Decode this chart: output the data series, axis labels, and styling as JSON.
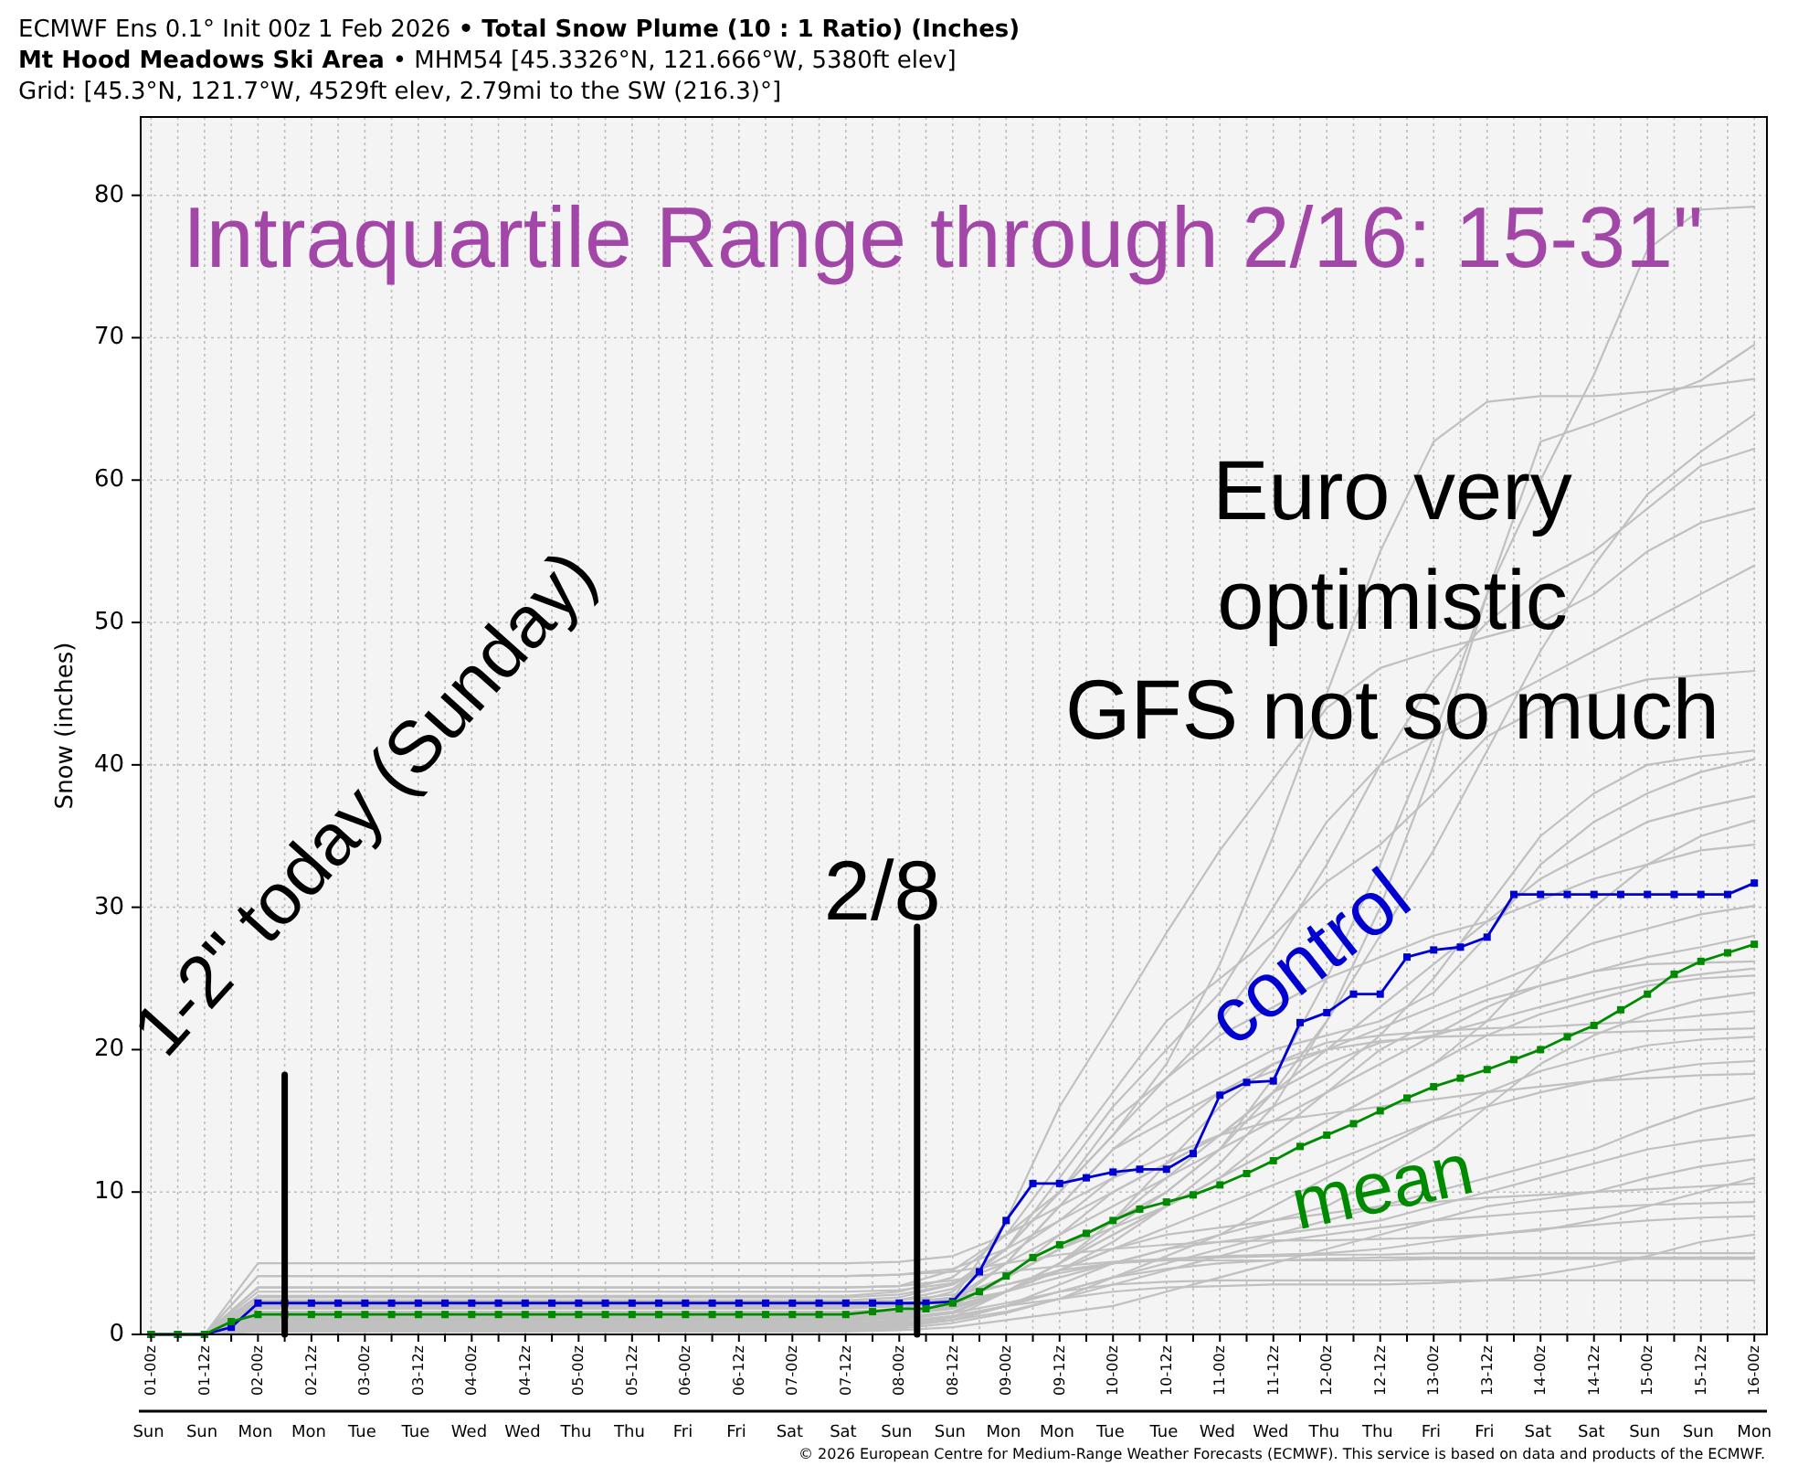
{
  "chart_data": {
    "type": "line",
    "title": "ECMWF Ens 0.1° Init 00z 1 Feb 2026 • Total Snow Plume (10 : 1 Ratio) (Inches)",
    "subtitle": "Mt Hood Meadows Ski Area • MHM54 [45.3326°N, 121.666°W, 5380ft elev]\nGrid: [45.3°N, 121.7°W, 4529ft elev, 2.79mi to the SW (216.3)°]",
    "ylabel": "Snow (inches)",
    "annotations": [
      "Intraquartile Range through 2/16: 15-31\"",
      "Euro very\noptimistic\nGFS not so much",
      "Sun Sun Mon Mon Tue Tue Wed Wed Thu Thu Fri Fri Sat Sat Sun Sun Mon Mon Tue Tue Wed Wed Thu Thu Fri Fri Sat Sat Sun Sun Mon",
      "© 2026 European Centre for Medium-Range Weather Forecasts (ECMWF). This service is based on data and products of the ECMWF."
    ],
    "x": [
      "2026-02-01T00:00",
      "2026-02-01T12:00",
      "2026-02-02T00:00",
      "2026-02-02T12:00",
      "2026-02-03T00:00",
      "2026-02-03T12:00",
      "2026-02-04T00:00",
      "2026-02-04T12:00",
      "2026-02-05T00:00",
      "2026-02-05T12:00",
      "2026-02-06T00:00",
      "2026-02-06T12:00",
      "2026-02-07T00:00",
      "2026-02-07T12:00",
      "2026-02-08T00:00",
      "2026-02-08T12:00",
      "2026-02-09T00:00",
      "2026-02-09T12:00",
      "2026-02-10T00:00",
      "2026-02-10T12:00",
      "2026-02-11T00:00",
      "2026-02-11T12:00",
      "2026-02-12T00:00",
      "2026-02-12T12:00",
      "2026-02-13T00:00",
      "2026-02-13T12:00",
      "2026-02-14T00:00",
      "2026-02-14T12:00",
      "2026-02-15T00:00",
      "2026-02-15T12:00",
      "2026-02-16T00:00"
    ],
    "series": [
      {
        "color": "#c0c0c0",
        "marker": "none",
        "values": [
          0,
          0,
          2,
          2,
          2,
          2,
          2,
          2,
          2,
          2,
          2,
          2,
          2,
          2,
          2.2,
          2.6,
          4,
          6,
          8,
          10,
          13,
          18,
          25,
          33,
          42,
          52,
          60,
          67.4,
          76.2,
          79,
          79.2
        ]
      },
      {
        "color": "#c0c0c0",
        "marker": "none",
        "values": [
          0,
          0,
          1.5,
          1.5,
          1.5,
          1.5,
          1.5,
          1.5,
          1.5,
          1.5,
          1.5,
          1.5,
          1.5,
          1.5,
          1.6,
          2,
          3,
          4.5,
          6.5,
          9,
          12,
          16,
          22,
          30,
          40,
          52,
          62.7,
          64,
          65.5,
          67,
          69.5
        ]
      },
      {
        "color": "#c0c0c0",
        "marker": "none",
        "values": [
          0,
          0,
          3.3,
          3.3,
          3.3,
          3.3,
          3.3,
          3.3,
          3.3,
          3.3,
          3.3,
          3.3,
          3.3,
          3.3,
          3.4,
          4.5,
          7,
          10,
          14,
          19,
          26,
          35,
          45,
          55,
          62.7,
          65.5,
          65.9,
          65.9,
          66.2,
          66.6,
          67.1
        ]
      },
      {
        "color": "#c0c0c0",
        "marker": "none",
        "values": [
          0,
          0,
          1,
          1,
          1,
          1,
          1,
          1,
          1,
          1,
          1,
          1,
          1,
          1,
          1.2,
          1.6,
          3,
          5,
          7.5,
          10,
          13,
          17,
          22,
          28,
          34,
          41,
          48,
          54,
          59,
          62,
          64.6
        ]
      },
      {
        "color": "#c0c0c0",
        "marker": "none",
        "values": [
          0,
          0,
          2.4,
          2.4,
          2.4,
          2.4,
          2.4,
          2.4,
          2.4,
          2.4,
          2.4,
          2.4,
          2.4,
          2.4,
          2.6,
          3.5,
          6,
          10,
          14,
          18,
          22,
          27,
          33,
          40,
          46,
          50,
          53,
          55,
          58,
          61,
          62.2
        ]
      },
      {
        "color": "#c0c0c0",
        "marker": "none",
        "values": [
          0,
          0,
          0.6,
          0.6,
          0.6,
          0.6,
          0.6,
          0.6,
          0.6,
          0.6,
          0.6,
          0.6,
          0.6,
          0.6,
          1,
          2.5,
          8,
          16,
          22,
          28.2,
          34,
          39,
          44,
          46.8,
          48,
          49,
          50,
          52,
          55,
          57,
          58
        ]
      },
      {
        "color": "#c0c0c0",
        "marker": "none",
        "values": [
          0,
          0,
          1.8,
          1.8,
          1.8,
          1.8,
          1.8,
          1.8,
          1.8,
          1.8,
          1.8,
          1.8,
          1.8,
          1.8,
          2,
          3,
          6,
          11,
          16,
          20,
          24,
          30,
          36,
          40,
          42,
          44,
          46,
          48,
          50,
          52,
          54
        ]
      },
      {
        "color": "#c0c0c0",
        "marker": "none",
        "values": [
          0,
          0,
          2.7,
          2.7,
          2.7,
          2.7,
          2.7,
          2.7,
          2.7,
          2.7,
          2.7,
          2.7,
          2.7,
          2.7,
          3,
          4,
          7,
          12,
          17,
          22,
          25,
          28,
          31.8,
          34.4,
          38,
          42,
          44,
          45,
          46,
          46.3,
          46.6
        ]
      },
      {
        "color": "#c0c0c0",
        "marker": "none",
        "values": [
          0,
          0,
          1.3,
          1.3,
          1.3,
          1.3,
          1.3,
          1.3,
          1.3,
          1.3,
          1.3,
          1.3,
          1.3,
          1.3,
          1.5,
          2,
          4,
          7,
          10,
          12,
          14,
          16,
          18,
          21,
          25,
          30,
          35,
          38,
          40,
          40.6,
          41
        ]
      },
      {
        "color": "#c0c0c0",
        "marker": "none",
        "values": [
          0,
          0,
          0.9,
          0.9,
          0.9,
          0.9,
          0.9,
          0.9,
          0.9,
          0.9,
          0.9,
          0.9,
          0.9,
          0.9,
          1.2,
          2.2,
          5,
          9,
          13,
          16,
          18,
          20,
          21,
          22,
          24,
          28,
          33,
          36,
          38,
          39.5,
          40.4
        ]
      },
      {
        "color": "#c0c0c0",
        "marker": "none",
        "values": [
          0,
          0,
          4.1,
          4.1,
          4.1,
          4.1,
          4.1,
          4.1,
          4.1,
          4.1,
          4.1,
          4.1,
          4.1,
          4.1,
          4.2,
          4.6,
          6,
          8,
          10,
          12,
          14,
          17,
          20,
          23,
          26,
          29,
          32,
          34,
          36,
          37,
          37.8
        ]
      },
      {
        "color": "#c0c0c0",
        "marker": "none",
        "values": [
          0,
          0,
          0.4,
          0.4,
          0.4,
          0.4,
          0.4,
          0.4,
          0.4,
          0.4,
          0.4,
          0.4,
          0.4,
          0.4,
          0.6,
          1.2,
          3,
          5,
          7,
          9,
          11,
          13,
          15,
          17,
          19,
          22,
          26,
          30,
          33,
          35,
          36.1
        ]
      },
      {
        "color": "#c0c0c0",
        "marker": "none",
        "values": [
          0,
          0,
          2.2,
          2.2,
          2.2,
          2.2,
          2.2,
          2.2,
          2.2,
          2.2,
          2.2,
          2.2,
          2.2,
          2.2,
          2.4,
          3.2,
          6,
          10,
          15,
          18,
          21,
          23,
          25,
          26.5,
          28,
          29,
          30.5,
          32,
          33,
          34,
          34.4
        ]
      },
      {
        "color": "#c0c0c0",
        "marker": "none",
        "values": [
          0,
          0,
          1.6,
          1.6,
          1.6,
          1.6,
          1.6,
          1.6,
          1.6,
          1.6,
          1.6,
          1.6,
          1.6,
          1.6,
          1.8,
          2.5,
          5,
          9,
          13,
          15,
          17,
          18.5,
          20,
          21.5,
          23,
          24.5,
          26,
          27.5,
          28.5,
          29.5,
          30.1
        ]
      },
      {
        "color": "#c0c0c0",
        "marker": "none",
        "values": [
          0,
          0,
          0.8,
          0.8,
          0.8,
          0.8,
          0.8,
          0.8,
          0.8,
          0.8,
          0.8,
          0.8,
          0.8,
          0.8,
          1,
          1.5,
          3,
          5,
          7,
          9,
          11,
          14,
          17,
          20,
          22,
          23.5,
          24.5,
          25.5,
          26.5,
          27.2,
          28
        ]
      },
      {
        "color": "#c0c0c0",
        "marker": "none",
        "values": [
          0,
          0,
          3,
          3,
          3,
          3,
          3,
          3,
          3,
          3,
          3,
          3,
          3,
          3,
          3.1,
          3.6,
          5,
          7,
          9,
          11,
          13,
          15,
          17,
          19,
          21,
          23,
          24.5,
          25.5,
          26,
          26.1,
          26.2
        ]
      },
      {
        "color": "#c0c0c0",
        "marker": "none",
        "values": [
          0,
          0,
          1.1,
          1.1,
          1.1,
          1.1,
          1.1,
          1.1,
          1.1,
          1.1,
          1.1,
          1.1,
          1.1,
          1.1,
          1.3,
          2,
          4,
          6,
          8,
          11,
          14,
          17,
          19,
          20.5,
          21,
          22,
          23,
          24,
          24.8,
          25.3,
          25.7
        ]
      },
      {
        "color": "#c0c0c0",
        "marker": "none",
        "values": [
          0,
          0,
          2,
          2,
          2,
          2,
          2,
          2,
          2,
          2,
          2,
          2,
          2,
          2,
          2.1,
          2.6,
          4,
          6,
          7.5,
          9,
          11,
          13,
          15,
          17,
          19,
          21,
          22.5,
          23.5,
          24.5,
          25,
          25.2
        ]
      },
      {
        "color": "#c0c0c0",
        "marker": "none",
        "values": [
          0,
          0,
          0.5,
          0.5,
          0.5,
          0.5,
          0.5,
          0.5,
          0.5,
          0.5,
          0.5,
          0.5,
          0.5,
          0.5,
          0.7,
          1,
          2,
          3.5,
          5,
          6,
          7,
          8,
          9,
          11,
          13,
          16,
          19,
          21,
          22.5,
          23.5,
          24
        ]
      },
      {
        "color": "#c0c0c0",
        "marker": "none",
        "values": [
          0,
          0,
          1.4,
          1.4,
          1.4,
          1.4,
          1.4,
          1.4,
          1.4,
          1.4,
          1.4,
          1.4,
          1.4,
          1.4,
          1.5,
          1.9,
          3,
          5,
          8,
          12,
          16,
          19,
          20.5,
          21,
          21.3,
          21.5,
          21.6,
          21.8,
          22,
          22.4,
          22.7
        ]
      },
      {
        "color": "#c0c0c0",
        "marker": "none",
        "values": [
          0,
          0,
          2.6,
          2.6,
          2.6,
          2.6,
          2.6,
          2.6,
          2.6,
          2.6,
          2.6,
          2.6,
          2.6,
          2.6,
          2.8,
          3.5,
          5.5,
          8,
          11,
          14,
          17,
          19,
          20,
          20.6,
          20.9,
          21,
          21.1,
          21.2,
          21.3,
          21.4,
          21.5
        ]
      },
      {
        "color": "#c0c0c0",
        "marker": "none",
        "values": [
          0,
          0,
          0.3,
          0.3,
          0.3,
          0.3,
          0.3,
          0.3,
          0.3,
          0.3,
          0.3,
          0.3,
          0.3,
          0.3,
          0.4,
          0.8,
          1.5,
          2.5,
          4,
          5.5,
          7,
          9,
          11,
          13,
          15,
          17,
          18.5,
          19.5,
          20.3,
          20.7,
          20.9
        ]
      },
      {
        "color": "#c0c0c0",
        "marker": "none",
        "values": [
          0,
          0,
          1.2,
          1.2,
          1.2,
          1.2,
          1.2,
          1.2,
          1.2,
          1.2,
          1.2,
          1.2,
          1.2,
          1.2,
          1.4,
          1.8,
          3,
          4.5,
          6,
          7.5,
          9,
          10.5,
          12,
          13.5,
          15,
          16,
          17,
          17.8,
          18.5,
          19,
          19.2
        ]
      },
      {
        "color": "#c0c0c0",
        "marker": "none",
        "values": [
          0,
          0,
          5,
          5,
          5,
          5,
          5,
          5,
          5,
          5,
          5,
          5,
          5,
          5,
          5.1,
          5.5,
          7,
          9,
          11,
          12.5,
          14,
          15,
          15.5,
          16,
          16.5,
          17,
          17.4,
          17.8,
          18,
          18.2,
          18.3
        ]
      },
      {
        "color": "#c0c0c0",
        "marker": "none",
        "values": [
          0,
          0,
          0.7,
          0.7,
          0.7,
          0.7,
          0.7,
          0.7,
          0.7,
          0.7,
          0.7,
          0.7,
          0.7,
          0.7,
          0.8,
          1.2,
          2,
          3,
          4,
          5,
          6,
          7,
          8,
          9,
          10,
          11,
          12,
          13,
          14.5,
          15.8,
          16.6
        ]
      },
      {
        "color": "#c0c0c0",
        "marker": "none",
        "values": [
          0,
          0,
          1.9,
          1.9,
          1.9,
          1.9,
          1.9,
          1.9,
          1.9,
          1.9,
          1.9,
          1.9,
          1.9,
          1.9,
          2,
          2.3,
          3,
          4,
          5,
          6,
          6.5,
          7,
          7.5,
          8,
          9,
          10,
          11,
          12,
          13,
          13.6,
          14
        ]
      },
      {
        "color": "#c0c0c0",
        "marker": "none",
        "values": [
          0,
          0,
          0.2,
          0.2,
          0.2,
          0.2,
          0.2,
          0.2,
          0.2,
          0.2,
          0.2,
          0.2,
          0.2,
          0.2,
          0.3,
          0.5,
          1,
          1.5,
          2,
          3,
          4,
          5,
          6,
          7,
          8,
          9,
          9.5,
          10,
          11,
          11.8,
          12.3
        ]
      },
      {
        "color": "#c0c0c0",
        "marker": "none",
        "values": [
          0,
          0,
          1.5,
          1.5,
          1.5,
          1.5,
          1.5,
          1.5,
          1.5,
          1.5,
          1.5,
          1.5,
          1.5,
          1.5,
          1.6,
          2,
          3,
          4.5,
          6,
          7,
          7.5,
          8,
          8.5,
          9,
          9.3,
          9.6,
          9.8,
          10,
          10.2,
          10.4,
          10.6
        ]
      },
      {
        "color": "#c0c0c0",
        "marker": "none",
        "values": [
          0,
          0,
          0.6,
          0.6,
          0.6,
          0.6,
          0.6,
          0.6,
          0.6,
          0.6,
          0.6,
          0.6,
          0.6,
          0.6,
          0.7,
          1,
          1.6,
          2.5,
          3.5,
          4.5,
          5.5,
          6.5,
          7,
          7.5,
          8,
          8.3,
          8.6,
          8.9,
          9.1,
          9.2,
          9.3
        ]
      },
      {
        "color": "#c0c0c0",
        "marker": "none",
        "values": [
          0,
          0,
          2.3,
          2.3,
          2.3,
          2.3,
          2.3,
          2.3,
          2.3,
          2.3,
          2.3,
          2.3,
          2.3,
          2.3,
          2.4,
          2.8,
          3.5,
          4.3,
          5,
          5.3,
          5.5,
          5.6,
          5.7,
          6,
          6.5,
          7,
          7.4,
          7.7,
          8,
          8.2,
          8.3
        ]
      },
      {
        "color": "#c0c0c0",
        "marker": "none",
        "values": [
          0,
          0,
          3.3,
          3.3,
          3.3,
          3.3,
          3.3,
          3.3,
          3.3,
          3.3,
          3.3,
          3.3,
          3.3,
          3.3,
          3.4,
          3.8,
          4.4,
          4.8,
          5.1,
          5.3,
          5.4,
          5.5,
          5.6,
          5.6,
          5.7,
          5.7,
          5.7,
          5.7,
          5.7,
          5.7,
          5.7
        ]
      },
      {
        "color": "#c0c0c0",
        "marker": "none",
        "values": [
          0,
          0,
          0.4,
          0.4,
          0.4,
          0.4,
          0.4,
          0.4,
          0.4,
          0.4,
          0.4,
          0.4,
          0.4,
          0.4,
          0.5,
          1,
          2,
          3,
          4,
          4.6,
          5,
          5.2,
          5.3,
          5.4,
          5.4,
          5.4,
          5.4,
          5.4,
          5.4,
          5.4,
          5.4
        ]
      },
      {
        "color": "#c0c0c0",
        "marker": "none",
        "values": [
          0,
          0,
          1,
          1,
          1,
          1,
          1,
          1,
          1,
          1,
          1,
          1,
          1,
          1,
          1.1,
          1.5,
          2.2,
          3,
          3.5,
          3.7,
          3.8,
          3.8,
          3.8,
          3.8,
          3.8,
          3.8,
          3.8,
          3.8,
          3.8,
          3.8,
          3.8
        ]
      },
      {
        "color": "#c0c0c0",
        "marker": "none",
        "values": [
          0,
          0,
          2,
          2,
          2,
          2,
          2,
          2,
          2,
          2,
          2,
          2,
          2,
          2,
          2.1,
          2.5,
          3.5,
          4.5,
          5,
          5.2,
          5.2,
          5.2,
          5.2,
          5.2,
          5.3,
          5.3,
          5.3,
          5.3,
          5.3,
          5.3,
          5.3
        ]
      },
      {
        "color": "#c0c0c0",
        "marker": "none",
        "values": [
          0,
          0,
          0.8,
          0.8,
          0.8,
          0.8,
          0.8,
          0.8,
          0.8,
          0.8,
          0.8,
          0.8,
          0.8,
          0.8,
          0.9,
          1.3,
          2,
          2.5,
          3,
          3.3,
          3.4,
          3.5,
          3.5,
          3.5,
          3.6,
          3.8,
          4.2,
          4.8,
          5.5,
          6.5,
          7
        ]
      },
      {
        "color": "#c0c0c0",
        "marker": "none",
        "values": [
          0,
          0,
          4.1,
          4.1,
          4.1,
          4.1,
          4.1,
          4.1,
          4.1,
          4.1,
          4.1,
          4.1,
          4.1,
          4.1,
          4.2,
          4.4,
          5,
          5.6,
          6,
          6.3,
          6.5,
          6.6,
          6.6,
          6.7,
          6.8,
          7,
          7.3,
          8,
          9,
          10,
          11
        ]
      },
      {
        "name": "control",
        "color": "#0000d0",
        "x": [
          "2026-02-01T00:00",
          "2026-02-01T06:00",
          "2026-02-01T12:00",
          "2026-02-01T18:00",
          "2026-02-02T00:00",
          "2026-02-02T06:00",
          "2026-02-02T12:00",
          "2026-02-02T18:00",
          "2026-02-03T00:00",
          "2026-02-03T06:00",
          "2026-02-03T12:00",
          "2026-02-03T18:00",
          "2026-02-04T00:00",
          "2026-02-04T06:00",
          "2026-02-04T12:00",
          "2026-02-04T18:00",
          "2026-02-05T00:00",
          "2026-02-05T06:00",
          "2026-02-05T12:00",
          "2026-02-05T18:00",
          "2026-02-06T00:00",
          "2026-02-06T06:00",
          "2026-02-06T12:00",
          "2026-02-06T18:00",
          "2026-02-07T00:00",
          "2026-02-07T06:00",
          "2026-02-07T12:00",
          "2026-02-07T18:00",
          "2026-02-08T00:00",
          "2026-02-08T06:00",
          "2026-02-08T12:00",
          "2026-02-08T18:00",
          "2026-02-09T00:00",
          "2026-02-09T06:00",
          "2026-02-09T12:00",
          "2026-02-09T18:00",
          "2026-02-10T00:00",
          "2026-02-10T06:00",
          "2026-02-10T12:00",
          "2026-02-10T18:00",
          "2026-02-11T00:00",
          "2026-02-11T06:00",
          "2026-02-11T12:00",
          "2026-02-11T18:00",
          "2026-02-12T00:00",
          "2026-02-12T06:00",
          "2026-02-12T12:00",
          "2026-02-12T18:00",
          "2026-02-13T00:00",
          "2026-02-13T06:00",
          "2026-02-13T12:00",
          "2026-02-13T18:00",
          "2026-02-14T00:00",
          "2026-02-14T06:00",
          "2026-02-14T12:00",
          "2026-02-14T18:00",
          "2026-02-15T00:00",
          "2026-02-15T06:00",
          "2026-02-15T12:00",
          "2026-02-15T18:00",
          "2026-02-16T00:00"
        ],
        "values": [
          0,
          0,
          0,
          0.5,
          2.2,
          2.2,
          2.2,
          2.2,
          2.2,
          2.2,
          2.2,
          2.2,
          2.2,
          2.2,
          2.2,
          2.2,
          2.2,
          2.2,
          2.2,
          2.2,
          2.2,
          2.2,
          2.2,
          2.2,
          2.2,
          2.2,
          2.2,
          2.2,
          2.2,
          2.2,
          2.3,
          4.4,
          8.0,
          10.6,
          10.6,
          11.0,
          11.4,
          11.6,
          11.6,
          12.7,
          16.8,
          17.7,
          17.8,
          21.9,
          22.6,
          23.9,
          23.9,
          26.5,
          27.0,
          27.2,
          27.9,
          30.9,
          30.9,
          30.9,
          30.9,
          30.9,
          30.9,
          30.9,
          30.9,
          30.9,
          31.7
        ]
      },
      {
        "name": "mean",
        "color": "#008a00",
        "x": [
          "2026-02-01T00:00",
          "2026-02-01T06:00",
          "2026-02-01T12:00",
          "2026-02-01T18:00",
          "2026-02-02T00:00",
          "2026-02-02T06:00",
          "2026-02-02T12:00",
          "2026-02-02T18:00",
          "2026-02-03T00:00",
          "2026-02-03T06:00",
          "2026-02-03T12:00",
          "2026-02-03T18:00",
          "2026-02-04T00:00",
          "2026-02-04T06:00",
          "2026-02-04T12:00",
          "2026-02-04T18:00",
          "2026-02-05T00:00",
          "2026-02-05T06:00",
          "2026-02-05T12:00",
          "2026-02-05T18:00",
          "2026-02-06T00:00",
          "2026-02-06T06:00",
          "2026-02-06T12:00",
          "2026-02-06T18:00",
          "2026-02-07T00:00",
          "2026-02-07T06:00",
          "2026-02-07T12:00",
          "2026-02-07T18:00",
          "2026-02-08T00:00",
          "2026-02-08T06:00",
          "2026-02-08T12:00",
          "2026-02-08T18:00",
          "2026-02-09T00:00",
          "2026-02-09T06:00",
          "2026-02-09T12:00",
          "2026-02-09T18:00",
          "2026-02-10T00:00",
          "2026-02-10T06:00",
          "2026-02-10T12:00",
          "2026-02-10T18:00",
          "2026-02-11T00:00",
          "2026-02-11T06:00",
          "2026-02-11T12:00",
          "2026-02-11T18:00",
          "2026-02-12T00:00",
          "2026-02-12T06:00",
          "2026-02-12T12:00",
          "2026-02-12T18:00",
          "2026-02-13T00:00",
          "2026-02-13T06:00",
          "2026-02-13T12:00",
          "2026-02-13T18:00",
          "2026-02-14T00:00",
          "2026-02-14T06:00",
          "2026-02-14T12:00",
          "2026-02-14T18:00",
          "2026-02-15T00:00",
          "2026-02-15T06:00",
          "2026-02-15T12:00",
          "2026-02-15T18:00",
          "2026-02-16T00:00"
        ],
        "values": [
          0,
          0,
          0,
          0.9,
          1.4,
          1.4,
          1.4,
          1.4,
          1.4,
          1.4,
          1.4,
          1.4,
          1.4,
          1.4,
          1.4,
          1.4,
          1.4,
          1.4,
          1.4,
          1.4,
          1.4,
          1.4,
          1.4,
          1.4,
          1.4,
          1.4,
          1.4,
          1.6,
          1.8,
          1.8,
          2.2,
          3.0,
          4.1,
          5.4,
          6.3,
          7.1,
          8.0,
          8.8,
          9.3,
          9.8,
          10.5,
          11.3,
          12.2,
          13.2,
          14.0,
          14.8,
          15.7,
          16.6,
          17.4,
          18.0,
          18.6,
          19.3,
          20.0,
          20.9,
          21.7,
          22.8,
          23.9,
          25.3,
          26.2,
          26.8,
          27.4
        ]
      }
    ],
    "xlim": [
      "2026-01-31T21:40",
      "2026-02-16T02:50"
    ],
    "xticks": [
      {
        "value": "2026-02-01T00:00",
        "label": "01-00z"
      },
      {
        "value": "2026-02-01T06:00",
        "label": null
      },
      {
        "value": "2026-02-01T12:00",
        "label": "01-12z"
      },
      {
        "value": "2026-02-01T18:00",
        "label": null
      },
      {
        "value": "2026-02-02T00:00",
        "label": "02-00z"
      },
      {
        "value": "2026-02-02T06:00",
        "label": null
      },
      {
        "value": "2026-02-02T12:00",
        "label": "02-12z"
      },
      {
        "value": "2026-02-02T18:00",
        "label": null
      },
      {
        "value": "2026-02-03T00:00",
        "label": "03-00z"
      },
      {
        "value": "2026-02-03T06:00",
        "label": null
      },
      {
        "value": "2026-02-03T12:00",
        "label": "03-12z"
      },
      {
        "value": "2026-02-03T18:00",
        "label": null
      },
      {
        "value": "2026-02-04T00:00",
        "label": "04-00z"
      },
      {
        "value": "2026-02-04T06:00",
        "label": null
      },
      {
        "value": "2026-02-04T12:00",
        "label": "04-12z"
      },
      {
        "value": "2026-02-04T18:00",
        "label": null
      },
      {
        "value": "2026-02-05T00:00",
        "label": "05-00z"
      },
      {
        "value": "2026-02-05T06:00",
        "label": null
      },
      {
        "value": "2026-02-05T12:00",
        "label": "05-12z"
      },
      {
        "value": "2026-02-05T18:00",
        "label": null
      },
      {
        "value": "2026-02-06T00:00",
        "label": "06-00z"
      },
      {
        "value": "2026-02-06T06:00",
        "label": null
      },
      {
        "value": "2026-02-06T12:00",
        "label": "06-12z"
      },
      {
        "value": "2026-02-06T18:00",
        "label": null
      },
      {
        "value": "2026-02-07T00:00",
        "label": "07-00z"
      },
      {
        "value": "2026-02-07T06:00",
        "label": null
      },
      {
        "value": "2026-02-07T12:00",
        "label": "07-12z"
      },
      {
        "value": "2026-02-07T18:00",
        "label": null
      },
      {
        "value": "2026-02-08T00:00",
        "label": "08-00z"
      },
      {
        "value": "2026-02-08T06:00",
        "label": null
      },
      {
        "value": "2026-02-08T12:00",
        "label": "08-12z"
      },
      {
        "value": "2026-02-08T18:00",
        "label": null
      },
      {
        "value": "2026-02-09T00:00",
        "label": "09-00z"
      },
      {
        "value": "2026-02-09T06:00",
        "label": null
      },
      {
        "value": "2026-02-09T12:00",
        "label": "09-12z"
      },
      {
        "value": "2026-02-09T18:00",
        "label": null
      },
      {
        "value": "2026-02-10T00:00",
        "label": "10-00z"
      },
      {
        "value": "2026-02-10T06:00",
        "label": null
      },
      {
        "value": "2026-02-10T12:00",
        "label": "10-12z"
      },
      {
        "value": "2026-02-10T18:00",
        "label": null
      },
      {
        "value": "2026-02-11T00:00",
        "label": "11-00z"
      },
      {
        "value": "2026-02-11T06:00",
        "label": null
      },
      {
        "value": "2026-02-11T12:00",
        "label": "11-12z"
      },
      {
        "value": "2026-02-11T18:00",
        "label": null
      },
      {
        "value": "2026-02-12T00:00",
        "label": "12-00z"
      },
      {
        "value": "2026-02-12T06:00",
        "label": null
      },
      {
        "value": "2026-02-12T12:00",
        "label": "12-12z"
      },
      {
        "value": "2026-02-12T18:00",
        "label": null
      },
      {
        "value": "2026-02-13T00:00",
        "label": "13-00z"
      },
      {
        "value": "2026-02-13T06:00",
        "label": null
      },
      {
        "value": "2026-02-13T12:00",
        "label": "13-12z"
      },
      {
        "value": "2026-02-13T18:00",
        "label": null
      },
      {
        "value": "2026-02-14T00:00",
        "label": "14-00z"
      },
      {
        "value": "2026-02-14T06:00",
        "label": null
      },
      {
        "value": "2026-02-14T12:00",
        "label": "14-12z"
      },
      {
        "value": "2026-02-14T18:00",
        "label": null
      },
      {
        "value": "2026-02-15T00:00",
        "label": "15-00z"
      },
      {
        "value": "2026-02-15T06:00",
        "label": null
      },
      {
        "value": "2026-02-15T12:00",
        "label": "15-12z"
      },
      {
        "value": "2026-02-15T18:00",
        "label": null
      },
      {
        "value": "2026-02-16T00:00",
        "label": "16-00z"
      }
    ],
    "ylim": [
      0,
      85.5
    ],
    "yticks": [
      0,
      10,
      20,
      30,
      40,
      50,
      60,
      70,
      80
    ],
    "grid": true,
    "marker": "square",
    "ref_lines": [
      {
        "axis": "x",
        "value": "2026-02-02T06:00",
        "label": "1-2\" today (Sunday)",
        "color": "#000000"
      },
      {
        "axis": "x",
        "value": "2026-02-08T04:00",
        "label": "2/8",
        "color": "#000000"
      }
    ]
  }
}
